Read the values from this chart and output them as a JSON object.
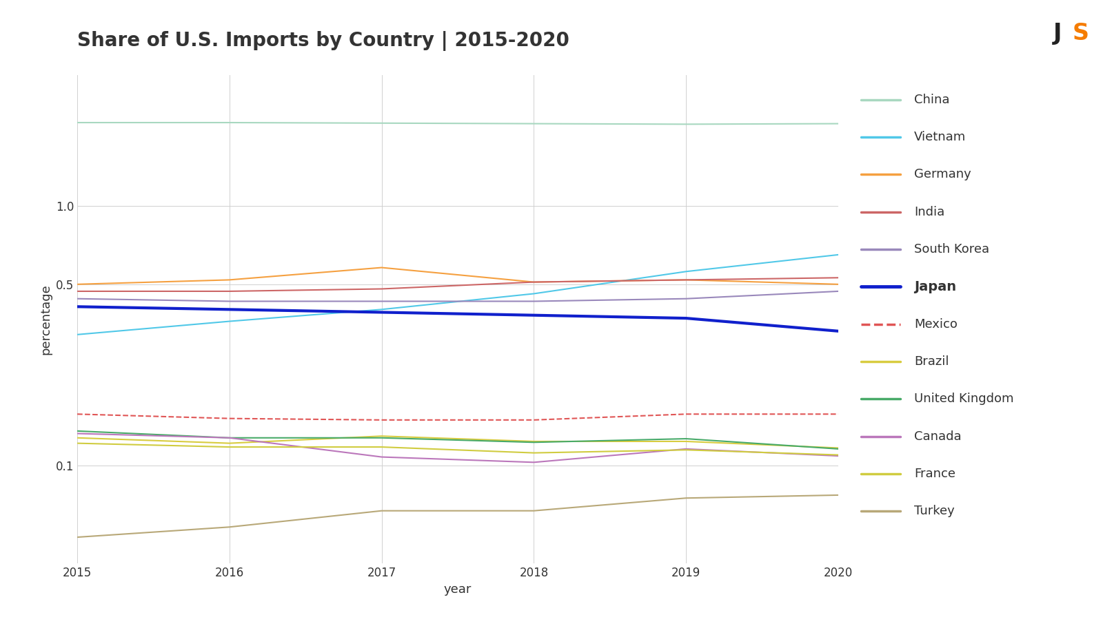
{
  "title": "Share of U.S. Imports by Country | 2015-2020",
  "xlabel": "year",
  "ylabel": "percentage",
  "years": [
    2015,
    2016,
    2017,
    2018,
    2019,
    2020
  ],
  "series": {
    "China": {
      "color": "#a8d8c0",
      "values": [
        2.1,
        2.1,
        2.09,
        2.08,
        2.07,
        2.08
      ],
      "lw": 1.5,
      "ls": "solid",
      "bold": false
    },
    "Vietnam": {
      "color": "#50c8e8",
      "values": [
        0.32,
        0.36,
        0.4,
        0.46,
        0.56,
        0.65
      ],
      "lw": 1.5,
      "ls": "solid",
      "bold": false
    },
    "Germany": {
      "color": "#f5a040",
      "values": [
        0.5,
        0.52,
        0.58,
        0.51,
        0.52,
        0.5
      ],
      "lw": 1.5,
      "ls": "solid",
      "bold": false
    },
    "India": {
      "color": "#cc6666",
      "values": [
        0.47,
        0.47,
        0.48,
        0.51,
        0.52,
        0.53
      ],
      "lw": 1.5,
      "ls": "solid",
      "bold": false
    },
    "South Korea": {
      "color": "#9988bb",
      "values": [
        0.44,
        0.43,
        0.43,
        0.43,
        0.44,
        0.47
      ],
      "lw": 1.5,
      "ls": "solid",
      "bold": false
    },
    "Japan": {
      "color": "#1020cc",
      "values": [
        0.41,
        0.4,
        0.39,
        0.38,
        0.37,
        0.33
      ],
      "lw": 3.0,
      "ls": "solid",
      "bold": true
    },
    "Mexico": {
      "color": "#e05555",
      "values": [
        0.158,
        0.152,
        0.15,
        0.15,
        0.158,
        0.158
      ],
      "lw": 1.5,
      "ls": "dashed",
      "bold": false
    },
    "Brazil": {
      "color": "#d8cc40",
      "values": [
        0.128,
        0.122,
        0.13,
        0.124,
        0.124,
        0.117
      ],
      "lw": 1.5,
      "ls": "solid",
      "bold": false
    },
    "United Kingdom": {
      "color": "#48aa68",
      "values": [
        0.136,
        0.128,
        0.128,
        0.123,
        0.127,
        0.116
      ],
      "lw": 1.5,
      "ls": "solid",
      "bold": false
    },
    "Canada": {
      "color": "#bb77bb",
      "values": [
        0.133,
        0.128,
        0.108,
        0.103,
        0.116,
        0.109
      ],
      "lw": 1.5,
      "ls": "solid",
      "bold": false
    },
    "France": {
      "color": "#d0cc40",
      "values": [
        0.122,
        0.118,
        0.118,
        0.112,
        0.115,
        0.11
      ],
      "lw": 1.5,
      "ls": "solid",
      "bold": false
    },
    "Turkey": {
      "color": "#b8a878",
      "values": [
        0.053,
        0.058,
        0.067,
        0.067,
        0.075,
        0.077
      ],
      "lw": 1.5,
      "ls": "solid",
      "bold": false
    }
  },
  "legend_order": [
    "China",
    "Vietnam",
    "Germany",
    "India",
    "South Korea",
    "Japan",
    "Mexico",
    "Brazil",
    "United Kingdom",
    "Canada",
    "France",
    "Turkey"
  ],
  "bg_color": "#ffffff",
  "legend_bg": "#eeeff2",
  "axis_color": "#333333",
  "grid_color": "#d0d0d0",
  "title_fontsize": 20,
  "label_fontsize": 13,
  "tick_fontsize": 12,
  "legend_fontsize": 13,
  "ylim_log": [
    0.042,
    3.2
  ],
  "yticks": [
    0.1,
    0.5,
    1.0
  ],
  "ytick_labels": [
    "0.1",
    "0.5",
    "1.0"
  ],
  "logo_color_j": "#222222",
  "logo_color_s": "#f57c00"
}
